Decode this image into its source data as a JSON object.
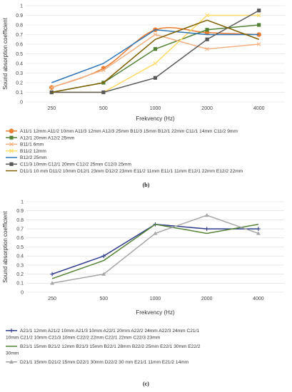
{
  "chart_data": [
    {
      "type": "line",
      "panel_label": "(b)",
      "xlabel": "Frekvency (Hz)",
      "ylabel": "Sound absorption coefficient",
      "categories": [
        "250",
        "500",
        "1000",
        "2000",
        "4000"
      ],
      "ylim": [
        0,
        1
      ],
      "yticks": [
        "0",
        "0.1",
        "0.2",
        "0.3",
        "0.4",
        "0.5",
        "0.6",
        "0.7",
        "0.8",
        "0.9",
        "1"
      ],
      "grid": true,
      "legend_position": "bottom",
      "series": [
        {
          "name": "A11/1 12mm A11/2 10mm A11/3 12mm A12/3 25mm B11/3 15mm B12/1 22mm C11/1 14mm C11/2 9mm",
          "values": [
            0.15,
            0.35,
            0.75,
            0.72,
            0.7
          ],
          "color": "#ED7D31",
          "marker": "circle",
          "smooth": true
        },
        {
          "name": "A12/1 20mm A12/2 25mm",
          "values": [
            0.1,
            0.2,
            0.55,
            0.75,
            0.8
          ],
          "color": "#548235",
          "marker": "square",
          "smooth": false
        },
        {
          "name": "B11/1 6mm",
          "values": [
            0.15,
            0.33,
            0.7,
            0.55,
            0.6
          ],
          "color": "#F4B183",
          "marker": "x",
          "smooth": false
        },
        {
          "name": "B11/2 12mm",
          "values": [
            0.1,
            0.1,
            0.4,
            0.9,
            0.9
          ],
          "color": "#FFD966",
          "marker": "x",
          "smooth": false
        },
        {
          "name": "B12/2 25mm",
          "values": [
            0.2,
            0.4,
            0.75,
            0.7,
            0.7
          ],
          "color": "#2E75B6",
          "marker": "none",
          "smooth": false
        },
        {
          "name": "C11/3 10mm C12/1 20mm C12/2 25mm C12/3 25mm",
          "values": [
            0.1,
            0.1,
            0.25,
            0.65,
            0.95
          ],
          "color": "#595959",
          "marker": "square",
          "smooth": false
        },
        {
          "name": "D11/1 10 mm D11/2 10mm D12/1 23mm D12/2 23mm E11/2 11mm E11/1 11mm E12/1 22mm E12/2 22mm",
          "values": [
            0.1,
            0.2,
            0.65,
            0.85,
            0.65
          ],
          "color": "#7F6000",
          "marker": "none",
          "smooth": false
        }
      ]
    },
    {
      "type": "line",
      "panel_label": "(c)",
      "xlabel": "Frekvency (Hz)",
      "ylabel": "Sound absorption coefficient",
      "categories": [
        "250",
        "500",
        "1000",
        "2000",
        "4000"
      ],
      "ylim": [
        0,
        1
      ],
      "yticks": [
        "0",
        "0.1",
        "0.2",
        "0.3",
        "0.4",
        "0.5",
        "0.6",
        "0.7",
        "0.8",
        "0.9",
        "1"
      ],
      "grid": true,
      "legend_position": "bottom",
      "series": [
        {
          "name": "A21/1 12mm A21/2 10mm A21/3 10mm A22/1 20mm A22/2 24mm A22/3 24mm C21/1 10mm C21/2 10mm C21/3 10mm C22/2 22mm C22/1 22mm C22/3 23mm",
          "values": [
            0.2,
            0.4,
            0.75,
            0.7,
            0.7
          ],
          "color": "#2F3C8C",
          "marker": "plus",
          "smooth": false
        },
        {
          "name": "B21/1 15mm B21/2 12mm B21/3 15mm B22/1 28mm B22/2 25mm E22/1 30mm E22/2 30mm",
          "values": [
            0.15,
            0.35,
            0.75,
            0.65,
            0.75
          ],
          "color": "#548235",
          "marker": "none",
          "smooth": false
        },
        {
          "name": "D21/1 15mm D21/2 15mm D22/1 30mm D22/2 30 mm E21/1 11mm E21/2 14mm",
          "values": [
            0.1,
            0.2,
            0.65,
            0.85,
            0.65
          ],
          "color": "#A6A6A6",
          "marker": "triangle",
          "smooth": false
        }
      ]
    }
  ]
}
